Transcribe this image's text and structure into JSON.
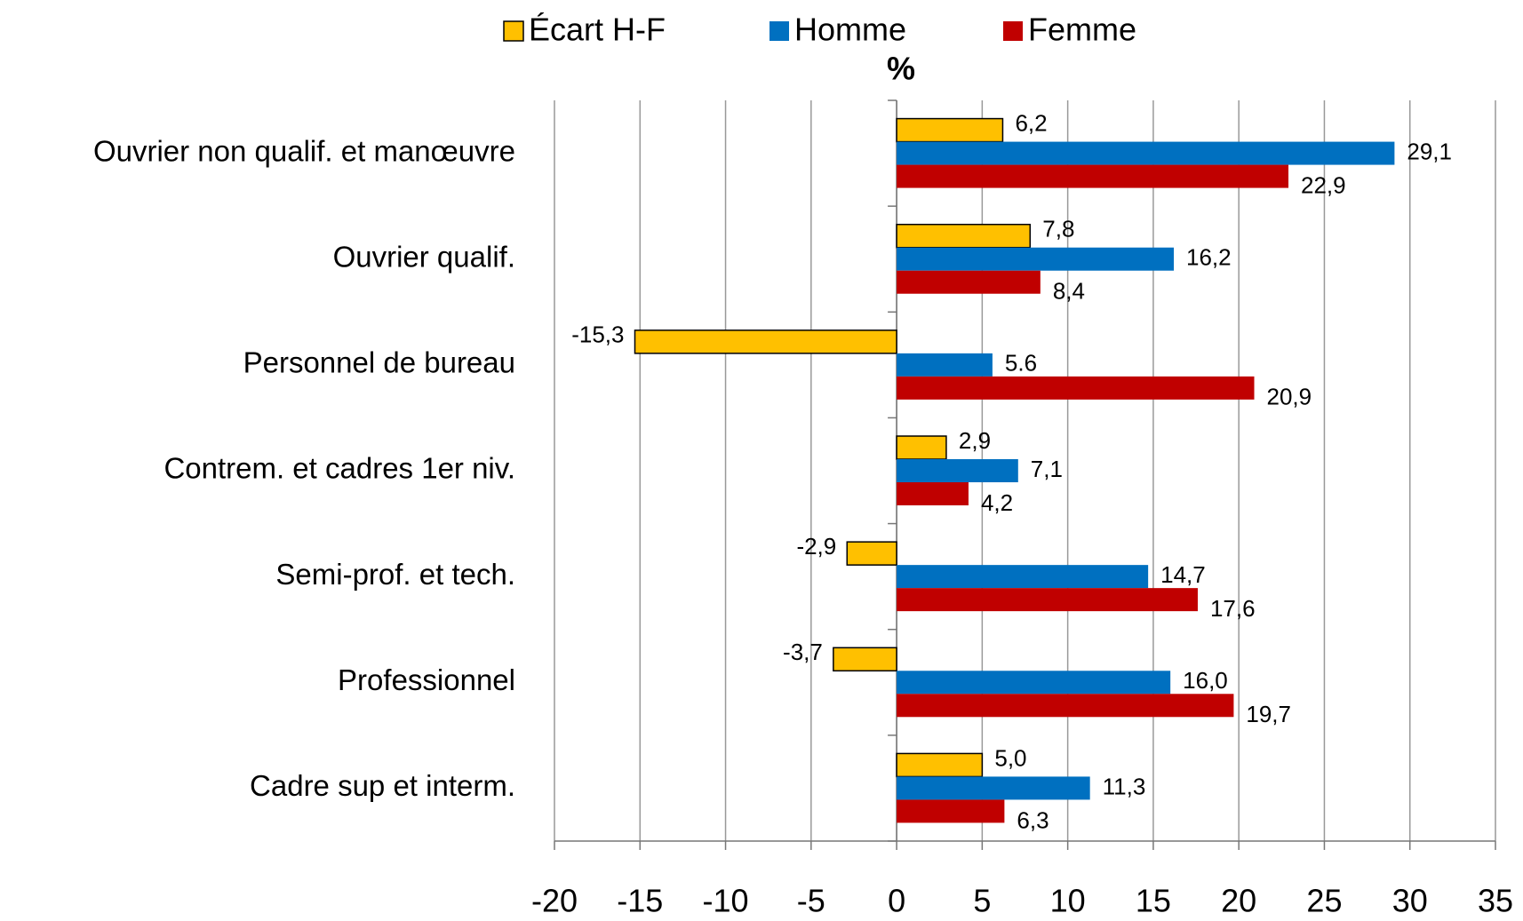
{
  "chart_data": {
    "type": "barh",
    "axis_label": "%",
    "categories": [
      "Ouvrier non qualif. et manœuvre",
      "Ouvrier qualif.",
      "Personnel de bureau",
      "Contrem. et cadres 1er niv.",
      "Semi-prof. et tech.",
      "Professionnel",
      "Cadre sup et interm."
    ],
    "series": [
      {
        "name": "Écart H-F",
        "color": "#FFC000",
        "values": [
          6.2,
          7.8,
          -15.3,
          2.9,
          -2.9,
          -3.7,
          5.0
        ],
        "value_labels": [
          "6,2",
          "7,8",
          "-15,3",
          "2,9",
          "-2,9",
          "-3,7",
          "5,0"
        ]
      },
      {
        "name": "Homme",
        "color": "#0070C0",
        "values": [
          29.1,
          16.2,
          5.6,
          7.1,
          14.7,
          16.0,
          11.3
        ],
        "value_labels": [
          "29,1",
          "16,2",
          "5.6",
          "7,1",
          "14,7",
          "16,0",
          "11,3"
        ]
      },
      {
        "name": "Femme",
        "color": "#C00000",
        "values": [
          22.9,
          8.4,
          20.9,
          4.2,
          17.6,
          19.7,
          6.3
        ],
        "value_labels": [
          "22,9",
          "8,4",
          "20,9",
          "4,2",
          "17,6",
          "19,7",
          "6,3"
        ]
      }
    ],
    "xlim": [
      -20,
      35
    ],
    "xticks": [
      -20,
      -15,
      -10,
      -5,
      0,
      5,
      10,
      15,
      20,
      25,
      30,
      35
    ],
    "grid": true,
    "legend": "top"
  }
}
